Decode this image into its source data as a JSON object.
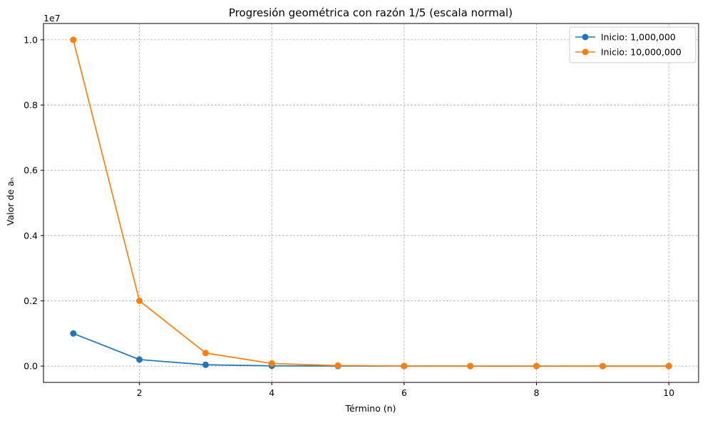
{
  "chart_data": {
    "type": "line",
    "title": "Progresión geométrica con razón 1/5 (escala normal)",
    "xlabel": "Término (n)",
    "ylabel": "Valor de aₙ",
    "y_offset_text": "1e7",
    "x": [
      1,
      2,
      3,
      4,
      5,
      6,
      7,
      8,
      9,
      10
    ],
    "xlim": [
      0.55,
      10.45
    ],
    "ylim": [
      -500000,
      10500000
    ],
    "x_ticks": [
      2,
      4,
      6,
      8,
      10
    ],
    "x_tick_labels": [
      "2",
      "4",
      "6",
      "8",
      "10"
    ],
    "y_ticks": [
      0,
      2000000,
      4000000,
      6000000,
      8000000,
      10000000
    ],
    "y_tick_labels": [
      "0.0",
      "0.2",
      "0.4",
      "0.6",
      "0.8",
      "1.0"
    ],
    "grid": true,
    "legend_position": "top-right",
    "series": [
      {
        "name": "Inicio: 1,000,000",
        "color": "#1f77b4",
        "marker": "circle",
        "values": [
          1000000,
          200000,
          40000,
          8000,
          1600,
          320,
          64,
          12.8,
          2.56,
          0.512
        ]
      },
      {
        "name": "Inicio: 10,000,000",
        "color": "#ff7f0e",
        "marker": "circle",
        "values": [
          10000000,
          2000000,
          400000,
          80000,
          16000,
          3200,
          640,
          128,
          25.6,
          5.12
        ]
      }
    ]
  }
}
